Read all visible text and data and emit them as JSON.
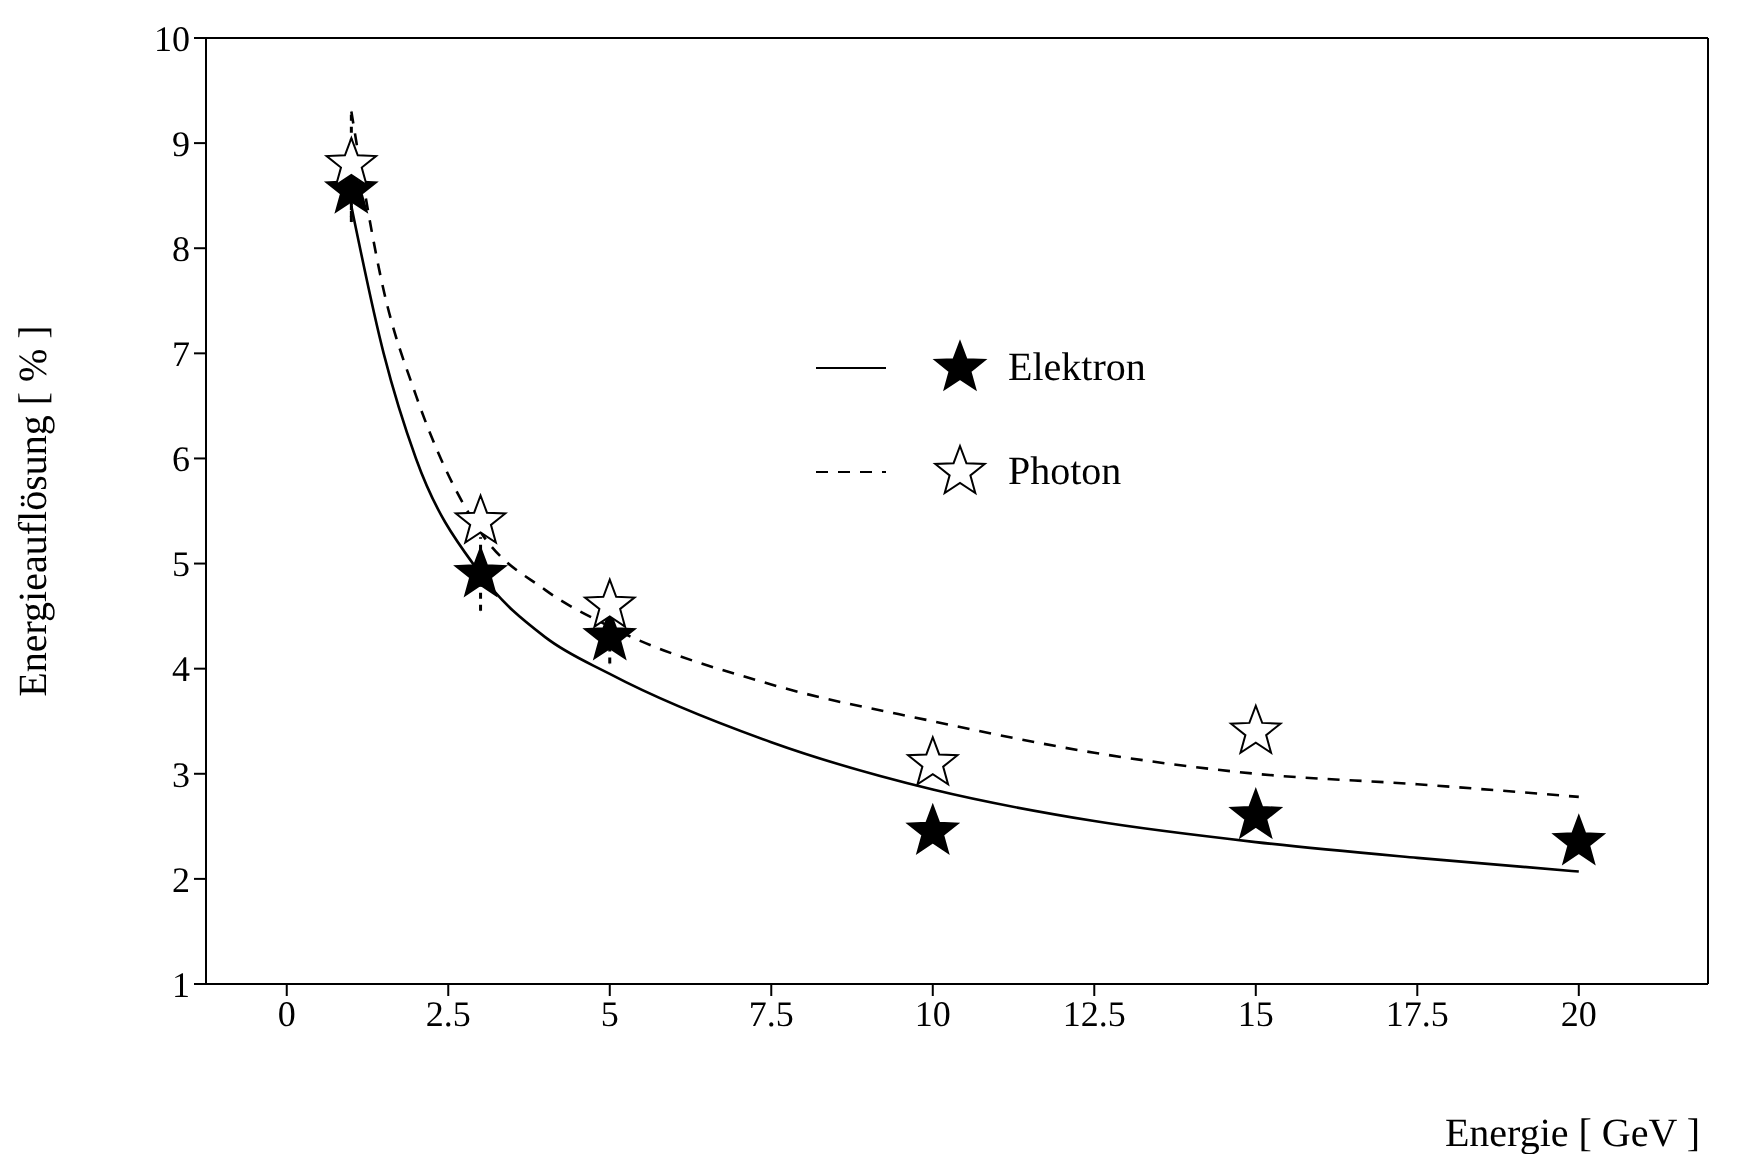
{
  "chart_data": {
    "type": "scatter",
    "xlabel": "Energie [ GeV ]",
    "ylabel": "Energieauflösung [ % ]",
    "xlim": [
      -1.25,
      22
    ],
    "xticks": [
      0,
      2.5,
      5,
      7.5,
      10,
      12.5,
      15,
      17.5,
      20
    ],
    "ylim": [
      1,
      10
    ],
    "yticks": [
      1,
      2,
      3,
      4,
      5,
      6,
      7,
      8,
      9,
      10
    ],
    "grid": false,
    "legend": "center",
    "marker": "star",
    "series": [
      {
        "type": "line",
        "color": "#000000",
        "line_style": "solid",
        "marker": "none",
        "x": [
          1,
          1.5,
          2,
          3,
          4,
          5,
          7.5,
          10,
          12.5,
          15,
          17.5,
          20
        ],
        "values": [
          8.4,
          7.0,
          6.0,
          4.9,
          4.3,
          3.95,
          3.3,
          2.85,
          2.55,
          2.35,
          2.2,
          2.07
        ]
      },
      {
        "type": "line",
        "color": "#000000",
        "line_style": "dashed",
        "marker": "none",
        "x": [
          1,
          1.5,
          2,
          3,
          4,
          5,
          7.5,
          10,
          12.5,
          15,
          17.5,
          20
        ],
        "values": [
          9.3,
          7.6,
          6.6,
          5.3,
          4.75,
          4.4,
          3.85,
          3.5,
          3.2,
          3.0,
          2.9,
          2.78
        ]
      },
      {
        "name": "Elektron",
        "color": "#000000",
        "x": [
          1,
          3,
          5,
          10,
          15,
          20
        ],
        "values": [
          8.55,
          4.9,
          4.3,
          2.45,
          2.6,
          2.35
        ],
        "errors": [
          0.3,
          0.35,
          0.25,
          null,
          null,
          null
        ]
      },
      {
        "name": "Photon",
        "color": "#ffffff",
        "x": [
          1,
          3,
          5,
          10,
          15
        ],
        "values": [
          8.8,
          5.4,
          4.6,
          3.1,
          3.4
        ],
        "errors": [
          0.5,
          null,
          null,
          null,
          null
        ]
      }
    ]
  }
}
